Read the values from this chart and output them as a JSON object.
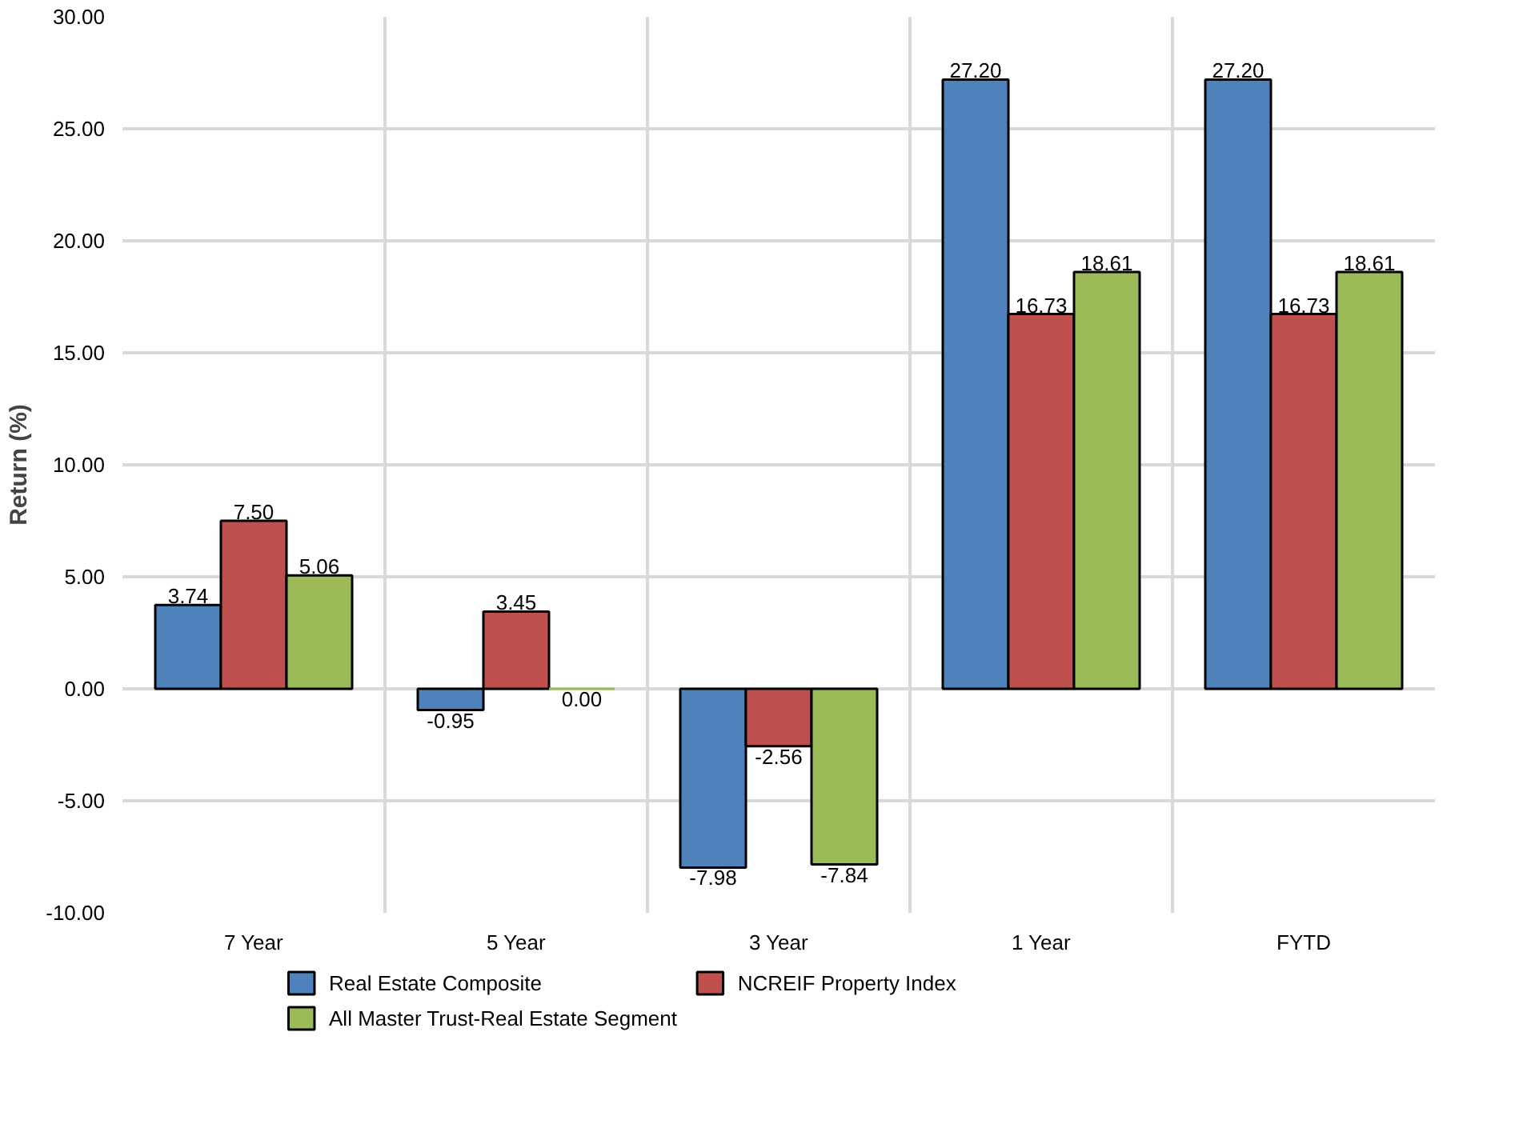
{
  "chart_data": {
    "type": "bar",
    "ylabel": "Return (%)",
    "categories": [
      "7 Year",
      "5 Year",
      "3 Year",
      "1 Year",
      "FYTD"
    ],
    "series": [
      {
        "name": "Real Estate Composite",
        "color": "#4f81bd",
        "values": [
          3.74,
          -0.95,
          -7.98,
          27.2,
          27.2
        ],
        "value_labels": [
          "3.74",
          "-0.95",
          "-7.98",
          "27.20",
          "27.20"
        ]
      },
      {
        "name": "NCREIF Property Index",
        "color": "#c0504d",
        "values": [
          7.5,
          3.45,
          -2.56,
          16.73,
          16.73
        ],
        "value_labels": [
          "7.50",
          "3.45",
          "-2.56",
          "16.73",
          "16.73"
        ]
      },
      {
        "name": "All Master Trust-Real Estate Segment",
        "color": "#9bbb59",
        "values": [
          5.06,
          0.0,
          -7.84,
          18.61,
          18.61
        ],
        "value_labels": [
          "5.06",
          "0.00",
          "-7.84",
          "18.61",
          "18.61"
        ]
      }
    ],
    "ylim": [
      -10,
      30
    ],
    "yticks": [
      {
        "value": -10,
        "label": "-10.00"
      },
      {
        "value": -5,
        "label": "-5.00"
      },
      {
        "value": 0,
        "label": "0.00"
      },
      {
        "value": 5,
        "label": "5.00"
      },
      {
        "value": 10,
        "label": "10.00"
      },
      {
        "value": 15,
        "label": "15.00"
      },
      {
        "value": 20,
        "label": "20.00"
      },
      {
        "value": 25,
        "label": "25.00"
      },
      {
        "value": 30,
        "label": "30.00"
      }
    ],
    "grid": true,
    "legend": "bottom"
  }
}
